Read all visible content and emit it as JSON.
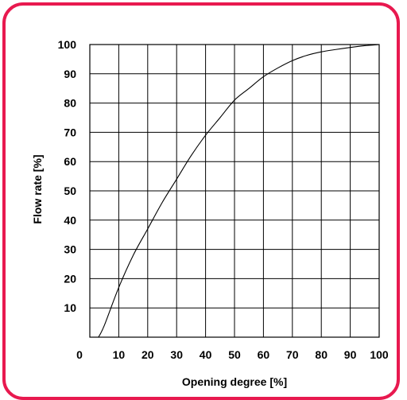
{
  "chart_data": {
    "type": "line",
    "xlabel": "Opening degree [%]",
    "ylabel": "Flow rate [%]",
    "xlim": [
      0,
      100
    ],
    "ylim": [
      0,
      100
    ],
    "x_ticks": [
      0,
      10,
      20,
      30,
      40,
      50,
      60,
      70,
      80,
      90,
      100
    ],
    "y_ticks": [
      10,
      20,
      30,
      40,
      50,
      60,
      70,
      80,
      90,
      100
    ],
    "x_tick_labels": [
      "0",
      "10",
      "20",
      "30",
      "40",
      "50",
      "60",
      "70",
      "80",
      "90",
      "100"
    ],
    "y_tick_labels": [
      "10",
      "20",
      "30",
      "40",
      "50",
      "60",
      "70",
      "80",
      "90",
      "100"
    ],
    "grid": true,
    "legend": "none",
    "series": [
      {
        "x": [
          3,
          5,
          10,
          15,
          20,
          25,
          30,
          35,
          40,
          45,
          50,
          55,
          60,
          65,
          70,
          75,
          80,
          85,
          90,
          95,
          100
        ],
        "y": [
          0,
          4,
          17,
          28,
          37,
          46,
          54,
          62,
          69,
          75,
          81,
          85,
          89,
          92,
          94.5,
          96.3,
          97.5,
          98.3,
          99,
          99.6,
          100
        ],
        "color": "#000000"
      }
    ]
  },
  "frame": {
    "border_color": "#e8194f"
  }
}
